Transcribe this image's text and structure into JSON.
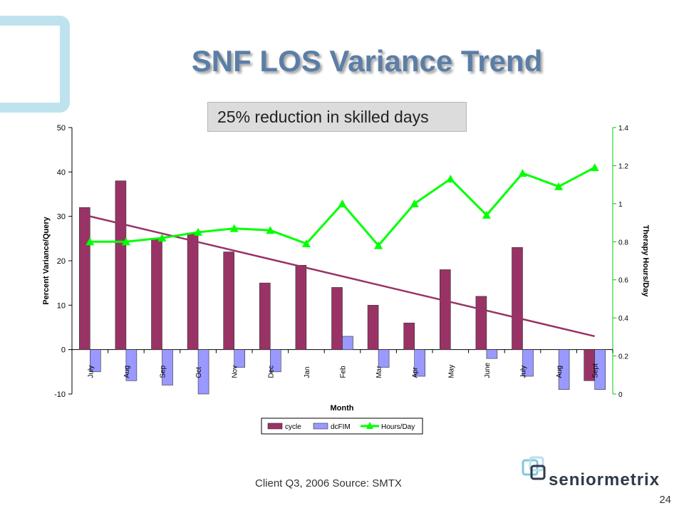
{
  "slide": {
    "title": "SNF LOS Variance Trend",
    "callout": "25% reduction in skilled days",
    "source": "Client Q3, 2006  Source: SMTX",
    "page_number": "24",
    "logo_text": "seniormetrix"
  },
  "colors": {
    "cycle": "#993366",
    "dcfim": "#9999ff",
    "hours": "#00ff00",
    "trend": "#993366",
    "title": "#5b7ea6"
  },
  "chart_data": {
    "type": "bar",
    "xlabel": "Month",
    "ylabel": "Percent Variance/Query",
    "y2label": "Therapy Hours/Day",
    "categories": [
      "July",
      "Aug",
      "Sep",
      "Oct",
      "Nov",
      "Dec",
      "Jan",
      "Feb",
      "Mar",
      "Apr",
      "May",
      "June",
      "July",
      "Aug",
      "Sept"
    ],
    "ylim": [
      -10,
      50
    ],
    "yticks": [
      -10,
      0,
      10,
      20,
      30,
      40,
      50
    ],
    "y2lim": [
      0,
      1.4
    ],
    "y2ticks": [
      "0",
      "0.2",
      "0.4",
      "0.6",
      "0.8",
      "1",
      "1.2",
      "1.4"
    ],
    "series": [
      {
        "name": "cycle",
        "kind": "bar",
        "axis": "left",
        "values": [
          32,
          38,
          25,
          26,
          22,
          15,
          19,
          14,
          10,
          6,
          18,
          12,
          23,
          0,
          -7
        ]
      },
      {
        "name": "dcFIM",
        "kind": "bar",
        "axis": "left",
        "values": [
          -5,
          -7,
          -8,
          -10,
          -4,
          -5,
          0,
          3,
          -4,
          -6,
          0,
          -2,
          -6,
          -9,
          -9
        ]
      },
      {
        "name": "Hours/Day",
        "kind": "line",
        "axis": "right",
        "values": [
          0.8,
          0.8,
          0.82,
          0.85,
          0.87,
          0.86,
          0.79,
          1.0,
          0.78,
          1.0,
          1.13,
          0.94,
          1.16,
          1.09,
          1.19
        ]
      }
    ],
    "trendline": {
      "series": "cycle",
      "type": "linear",
      "start": 30,
      "end": 3
    },
    "legend": {
      "placement": "bottom",
      "entries": [
        "cycle",
        "dcFIM",
        "Hours/Day"
      ]
    }
  }
}
